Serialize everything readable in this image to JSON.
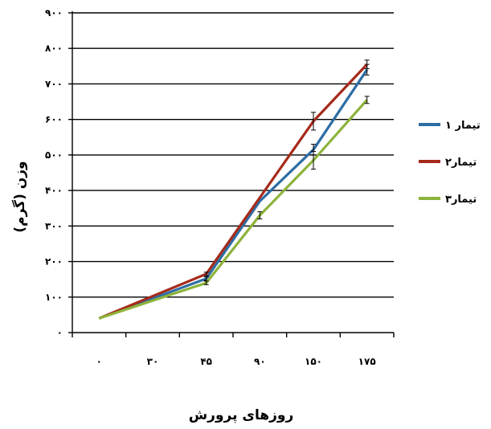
{
  "chart_data": {
    "type": "line",
    "categories": [
      "۰",
      "۳۰",
      "۴۵",
      "۹۰",
      "۱۵۰",
      "۱۷۵"
    ],
    "y_tick_labels": [
      "۰",
      "۱۰۰",
      "۲۰۰",
      "۳۰۰",
      "۴۰۰",
      "۵۰۰",
      "۶۰۰",
      "۷۰۰",
      "۸۰۰",
      "۹۰۰"
    ],
    "xlabel": "روزهای پرورش",
    "ylabel": "وزن (گرم)",
    "ylim": [
      0,
      900
    ],
    "grid": true,
    "legend_position": "right",
    "series": [
      {
        "name": "تیمار ۱",
        "color": "#2e6da4",
        "x": [
          0,
          45,
          90,
          150,
          175
        ],
        "values": [
          40,
          152,
          370,
          515,
          740
        ],
        "errors": [
          0,
          5,
          0,
          15,
          15
        ]
      },
      {
        "name": "تیمار۲",
        "color": "#a52a1a",
        "x": [
          0,
          45,
          90,
          150,
          175
        ],
        "values": [
          40,
          165,
          380,
          595,
          755
        ],
        "errors": [
          0,
          5,
          0,
          25,
          12
        ]
      },
      {
        "name": "تیمار۳",
        "color": "#8db33b",
        "x": [
          0,
          45,
          90,
          150,
          175
        ],
        "values": [
          40,
          140,
          330,
          485,
          655
        ],
        "errors": [
          0,
          5,
          10,
          25,
          10
        ]
      }
    ]
  }
}
